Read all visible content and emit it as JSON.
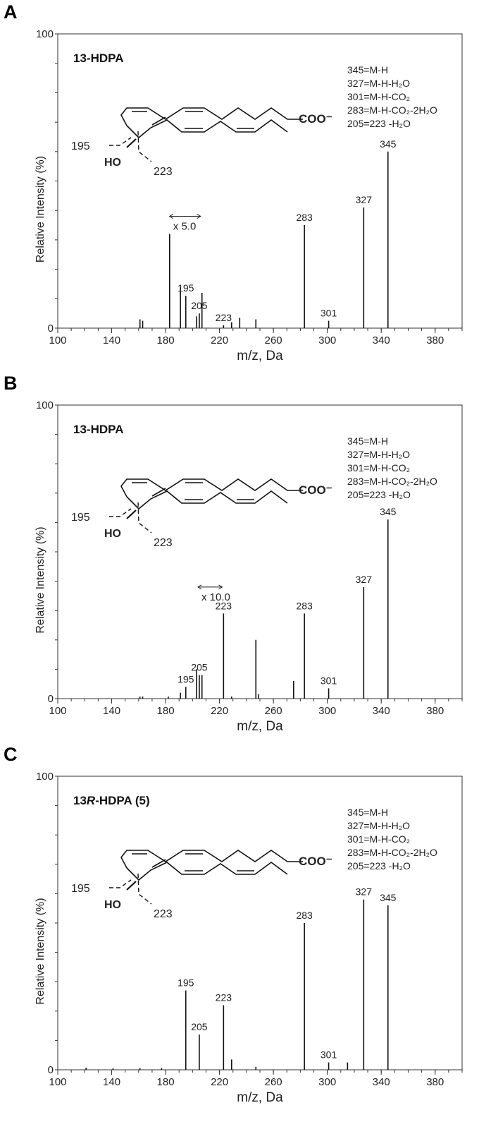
{
  "chart_data": [
    {
      "type": "bar",
      "panel": "A",
      "compound_label": {
        "prefix": "13-HDPA",
        "italic": "",
        "suffix": ""
      },
      "xlabel": "m/z, Da",
      "ylabel": "Relative Intensity (%)",
      "xlim": [
        100,
        400
      ],
      "ylim": [
        0,
        100
      ],
      "xticks": [
        "100",
        "140",
        "180",
        "220",
        "260",
        "300",
        "340",
        "380"
      ],
      "yticks": [
        "0",
        "100"
      ],
      "scale_note": {
        "text": "x 5.0",
        "from_mz": 183,
        "to_mz": 206
      },
      "legend_lines": [
        "345=M-H",
        "327=M-H-H₂O",
        "301=M-H-CO₂",
        "283=M-H-CO₂-2H₂O",
        "205=223 -H₂O"
      ],
      "structure_labels": {
        "cooh": "COO⁻",
        "oh": "HO",
        "frag1": "195",
        "frag2": "223"
      },
      "peaks": [
        {
          "mz": 161,
          "intensity": 3
        },
        {
          "mz": 163,
          "intensity": 2.5
        },
        {
          "mz": 183,
          "intensity": 32
        },
        {
          "mz": 191,
          "intensity": 14
        },
        {
          "mz": 195,
          "intensity": 11,
          "label": "195"
        },
        {
          "mz": 203,
          "intensity": 4
        },
        {
          "mz": 205,
          "intensity": 5,
          "label": "205"
        },
        {
          "mz": 207,
          "intensity": 12
        },
        {
          "mz": 223,
          "intensity": 1,
          "label": "223"
        },
        {
          "mz": 229,
          "intensity": 2
        },
        {
          "mz": 235,
          "intensity": 3.5
        },
        {
          "mz": 247,
          "intensity": 3
        },
        {
          "mz": 283,
          "intensity": 35,
          "label": "283"
        },
        {
          "mz": 301,
          "intensity": 2.5,
          "label": "301"
        },
        {
          "mz": 327,
          "intensity": 41,
          "label": "327"
        },
        {
          "mz": 345,
          "intensity": 60,
          "label": "345"
        }
      ]
    },
    {
      "type": "bar",
      "panel": "B",
      "compound_label": {
        "prefix": "13-HDPA",
        "italic": "",
        "suffix": ""
      },
      "xlabel": "m/z, Da",
      "ylabel": "Relative Intensity (%)",
      "xlim": [
        100,
        400
      ],
      "ylim": [
        0,
        100
      ],
      "xticks": [
        "100",
        "140",
        "180",
        "220",
        "260",
        "300",
        "340",
        "380"
      ],
      "yticks": [
        "0",
        "100"
      ],
      "scale_note": {
        "text": "x 10.0",
        "from_mz": 204,
        "to_mz": 222
      },
      "legend_lines": [
        "345=M-H",
        "327=M-H-H₂O",
        "301=M-H-CO₂",
        "283=M-H-CO₂-2H₂O",
        "205=223 -H₂O"
      ],
      "structure_labels": {
        "cooh": "COO⁻",
        "oh": "HO",
        "frag1": "195",
        "frag2": "223"
      },
      "peaks": [
        {
          "mz": 161,
          "intensity": 0.7
        },
        {
          "mz": 163,
          "intensity": 0.7
        },
        {
          "mz": 182,
          "intensity": 0.7
        },
        {
          "mz": 191,
          "intensity": 2
        },
        {
          "mz": 195,
          "intensity": 4,
          "label": "195"
        },
        {
          "mz": 203,
          "intensity": 10
        },
        {
          "mz": 205,
          "intensity": 8,
          "label": "205"
        },
        {
          "mz": 207,
          "intensity": 8
        },
        {
          "mz": 223,
          "intensity": 29,
          "label": "223"
        },
        {
          "mz": 229,
          "intensity": 0.7
        },
        {
          "mz": 247,
          "intensity": 20
        },
        {
          "mz": 249,
          "intensity": 1.5
        },
        {
          "mz": 275,
          "intensity": 6
        },
        {
          "mz": 283,
          "intensity": 29,
          "label": "283"
        },
        {
          "mz": 301,
          "intensity": 3.5,
          "label": "301"
        },
        {
          "mz": 327,
          "intensity": 38,
          "label": "327"
        },
        {
          "mz": 345,
          "intensity": 61,
          "label": "345"
        }
      ]
    },
    {
      "type": "bar",
      "panel": "C",
      "compound_label": {
        "prefix": "13",
        "italic": "R",
        "suffix": "-HDPA (5)"
      },
      "xlabel": "m/z, Da",
      "ylabel": "Relative Intensity (%)",
      "xlim": [
        100,
        400
      ],
      "ylim": [
        0,
        100
      ],
      "xticks": [
        "100",
        "140",
        "180",
        "220",
        "260",
        "300",
        "340",
        "380"
      ],
      "yticks": [
        "0",
        "100"
      ],
      "scale_note": null,
      "legend_lines": [
        "345=M-H",
        "327=M-H-H₂O",
        "301=M-H-CO₂",
        "283=M-H-CO₂-2H₂O",
        "205=223 -H₂O"
      ],
      "structure_labels": {
        "cooh": "COO⁻",
        "oh": "HO",
        "frag1": "195",
        "frag2": "223"
      },
      "peaks": [
        {
          "mz": 121,
          "intensity": 0.7
        },
        {
          "mz": 141,
          "intensity": 0.5
        },
        {
          "mz": 161,
          "intensity": 0.6
        },
        {
          "mz": 177,
          "intensity": 0.6
        },
        {
          "mz": 195,
          "intensity": 27,
          "label": "195"
        },
        {
          "mz": 205,
          "intensity": 12,
          "label": "205"
        },
        {
          "mz": 223,
          "intensity": 22,
          "label": "223"
        },
        {
          "mz": 229,
          "intensity": 3.5
        },
        {
          "mz": 247,
          "intensity": 1
        },
        {
          "mz": 283,
          "intensity": 50,
          "label": "283"
        },
        {
          "mz": 301,
          "intensity": 2.5,
          "label": "301"
        },
        {
          "mz": 315,
          "intensity": 2.5
        },
        {
          "mz": 327,
          "intensity": 58,
          "label": "327"
        },
        {
          "mz": 345,
          "intensity": 56,
          "label": "345"
        }
      ]
    }
  ]
}
